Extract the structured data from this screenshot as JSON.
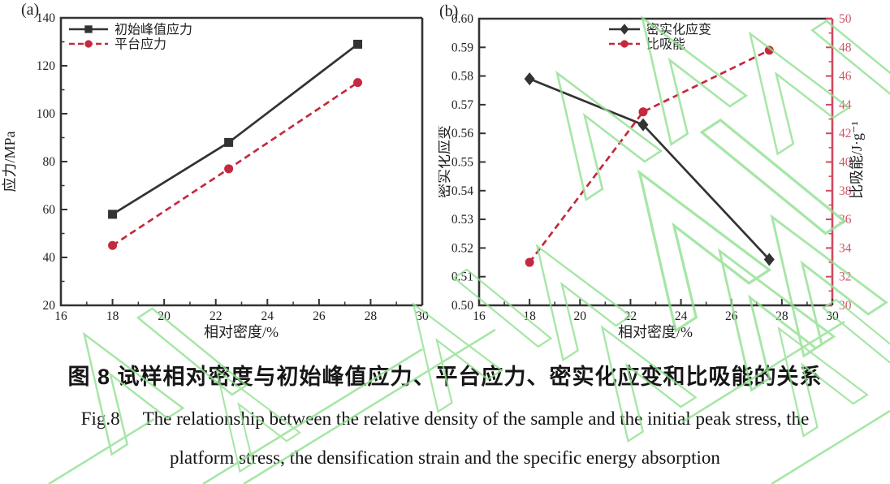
{
  "colors": {
    "black_series": "#333333",
    "red_series": "#c5293d",
    "red_axis": "#cf4a5e",
    "red_axis_label": "#cd5568",
    "watermark_green": "#90e090"
  },
  "caption": {
    "zh": "图 8 试样相对密度与初始峰值应力、平台应力、密实化应变和比吸能的关系",
    "fig_label": "Fig.8",
    "en_line1": "The relationship between the relative density of the sample and the initial peak stress, the",
    "en_line2": "platform stress, the densification strain and the specific energy absorption"
  },
  "chart_data": [
    {
      "id": "a",
      "type": "line",
      "panel_label": "(a)",
      "xlabel": "相对密度/%",
      "ylabel": "应力/MPa",
      "xlim": [
        16,
        30
      ],
      "xticks": [
        "16",
        "18",
        "20",
        "22",
        "24",
        "26",
        "28",
        "30"
      ],
      "ylim": [
        20,
        140
      ],
      "yticks": [
        "20",
        "40",
        "60",
        "80",
        "100",
        "120",
        "140"
      ],
      "x": [
        18,
        22.5,
        27.5
      ],
      "series": [
        {
          "name": "初始峰值应力",
          "values": [
            58,
            88,
            129
          ],
          "color": "#333333",
          "marker": "square",
          "line": "solid",
          "axis": "left"
        },
        {
          "name": "平台应力",
          "values": [
            45,
            77,
            113
          ],
          "color": "#c5293d",
          "marker": "circle",
          "line": "dashed",
          "axis": "left"
        }
      ],
      "legend_position": "top-left",
      "grid": false
    },
    {
      "id": "b",
      "type": "line",
      "panel_label": "(b)",
      "xlabel": "相对密度/%",
      "ylabel": "密实化应变",
      "ylabel_right": "比吸能/J·g⁻¹",
      "xlim": [
        16,
        30
      ],
      "xticks": [
        "16",
        "18",
        "20",
        "22",
        "24",
        "26",
        "28",
        "30"
      ],
      "ylim": [
        0.5,
        0.6
      ],
      "yticks": [
        "0.50",
        "0.51",
        "0.52",
        "0.53",
        "0.54",
        "0.55",
        "0.56",
        "0.57",
        "0.58",
        "0.59",
        "0.60"
      ],
      "ylim_right": [
        30,
        50
      ],
      "yticks_right": [
        "30",
        "32",
        "34",
        "36",
        "38",
        "40",
        "42",
        "44",
        "46",
        "48",
        "50"
      ],
      "x": [
        18,
        22.5,
        27.5
      ],
      "series": [
        {
          "name": "密实化应变",
          "values": [
            0.579,
            0.563,
            0.516
          ],
          "color": "#333333",
          "marker": "diamond",
          "line": "solid",
          "axis": "left"
        },
        {
          "name": "比吸能",
          "values": [
            33,
            43.5,
            47.8
          ],
          "color": "#c5293d",
          "marker": "circle",
          "line": "dashed",
          "axis": "right"
        }
      ],
      "legend_position": "top-right",
      "grid": false
    }
  ]
}
